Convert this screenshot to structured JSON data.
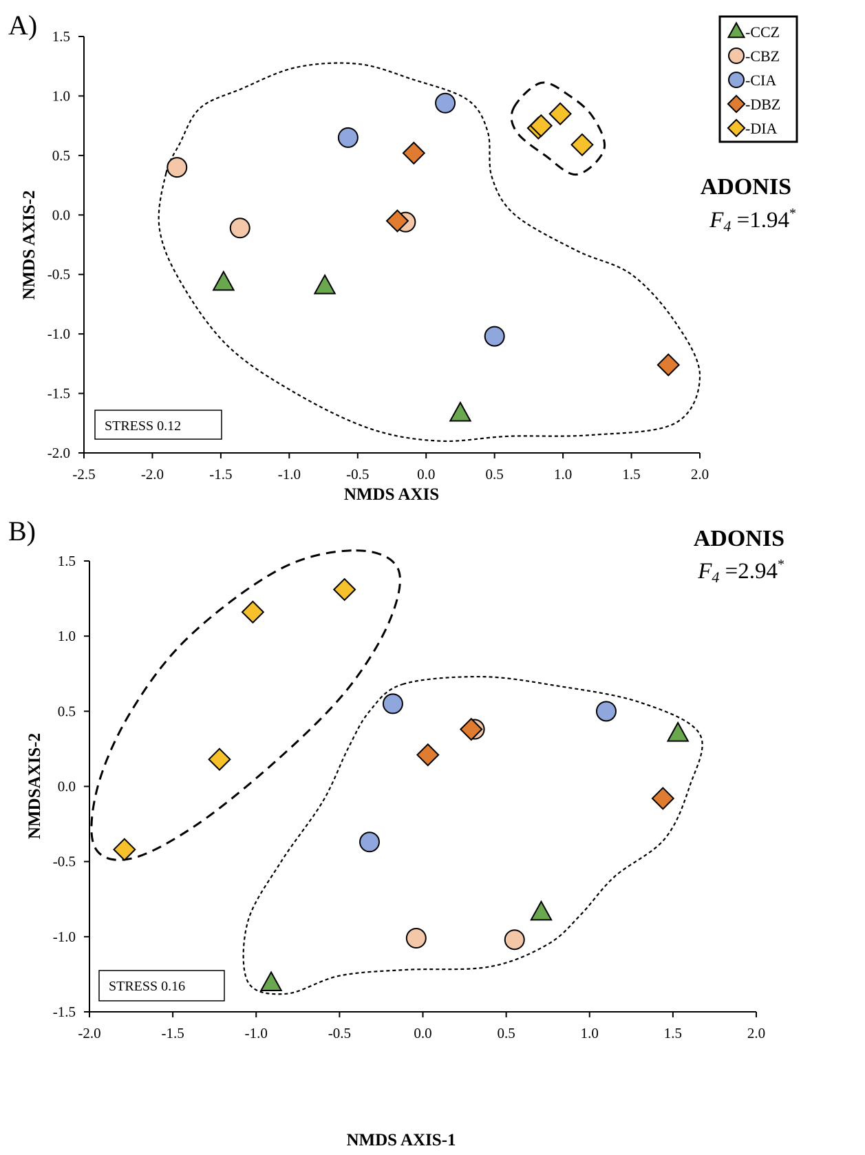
{
  "colors": {
    "CCZ": "#6aa84f",
    "CBZ": "#f4c7a8",
    "CIA": "#8fa7dc",
    "DBZ": "#e07b32",
    "DIA": "#f6c12b",
    "stroke": "#000000"
  },
  "legend": [
    {
      "key": "CCZ",
      "label": "-CCZ",
      "shape": "triangle"
    },
    {
      "key": "CBZ",
      "label": "-CBZ",
      "shape": "circle"
    },
    {
      "key": "CIA",
      "label": "-CIA",
      "shape": "circle"
    },
    {
      "key": "DBZ",
      "label": "-DBZ",
      "shape": "diamond"
    },
    {
      "key": "DIA",
      "label": "-DIA",
      "shape": "diamond"
    }
  ],
  "chart_data": [
    {
      "type": "scatter",
      "panel_label": "A)",
      "xlabel": "NMDS AXIS",
      "ylabel": "NMDS AXIS-2",
      "xlim": [
        -2.5,
        2.0
      ],
      "ylim": [
        -2.0,
        1.5
      ],
      "xticks": [
        "-2.5",
        "-2.0",
        "-1.5",
        "-1.0",
        "-0.5",
        "0.0",
        "0.5",
        "1.0",
        "1.5",
        "2.0"
      ],
      "yticks": [
        "1.5",
        "1.0",
        "0.5",
        "0.0",
        "-0.5",
        "-1.0",
        "-1.5",
        "-2.0"
      ],
      "stress": "STRESS 0.12",
      "adonis_title": "ADONIS",
      "adonis_f": "F",
      "adonis_df": "4",
      "adonis_value": " =1.94",
      "adonis_sig": "*",
      "points": [
        {
          "group": "CBZ",
          "x": -1.82,
          "y": 0.4
        },
        {
          "group": "CBZ",
          "x": -1.36,
          "y": -0.11
        },
        {
          "group": "CBZ",
          "x": -0.15,
          "y": -0.06
        },
        {
          "group": "CIA",
          "x": -0.57,
          "y": 0.65
        },
        {
          "group": "CIA",
          "x": 0.14,
          "y": 0.94
        },
        {
          "group": "CIA",
          "x": 0.5,
          "y": -1.02
        },
        {
          "group": "DBZ",
          "x": -0.09,
          "y": 0.52
        },
        {
          "group": "DBZ",
          "x": -0.21,
          "y": -0.05
        },
        {
          "group": "DBZ",
          "x": 1.77,
          "y": -1.26
        },
        {
          "group": "CCZ",
          "x": -1.48,
          "y": -0.57
        },
        {
          "group": "CCZ",
          "x": -0.74,
          "y": -0.6
        },
        {
          "group": "CCZ",
          "x": 0.25,
          "y": -1.67
        },
        {
          "group": "DIA",
          "x": 0.82,
          "y": 0.73
        },
        {
          "group": "DIA",
          "x": 0.84,
          "y": 0.75
        },
        {
          "group": "DIA",
          "x": 0.98,
          "y": 0.85
        },
        {
          "group": "DIA",
          "x": 1.14,
          "y": 0.59
        }
      ],
      "hulls": [
        {
          "style": "dotted",
          "points": [
            [
              -1.9,
              0.35
            ],
            [
              -1.8,
              0.6
            ],
            [
              -1.65,
              0.9
            ],
            [
              -1.35,
              1.06
            ],
            [
              -0.95,
              1.24
            ],
            [
              -0.5,
              1.27
            ],
            [
              -0.1,
              1.14
            ],
            [
              0.3,
              0.97
            ],
            [
              0.45,
              0.7
            ],
            [
              0.48,
              0.32
            ],
            [
              0.65,
              0.0
            ],
            [
              1.1,
              -0.3
            ],
            [
              1.5,
              -0.5
            ],
            [
              1.82,
              -0.9
            ],
            [
              2.0,
              -1.35
            ],
            [
              1.82,
              -1.75
            ],
            [
              1.2,
              -1.85
            ],
            [
              0.6,
              -1.86
            ],
            [
              0.1,
              -1.9
            ],
            [
              -0.4,
              -1.8
            ],
            [
              -0.95,
              -1.5
            ],
            [
              -1.45,
              -1.1
            ],
            [
              -1.8,
              -0.55
            ],
            [
              -1.95,
              -0.1
            ]
          ]
        },
        {
          "style": "dashed",
          "points": [
            [
              0.64,
              0.9
            ],
            [
              0.84,
              1.11
            ],
            [
              1.05,
              1.0
            ],
            [
              1.22,
              0.82
            ],
            [
              1.3,
              0.55
            ],
            [
              1.1,
              0.34
            ],
            [
              0.87,
              0.5
            ],
            [
              0.66,
              0.7
            ]
          ]
        }
      ]
    },
    {
      "type": "scatter",
      "panel_label": "B)",
      "xlabel": "NMDS AXIS-1",
      "ylabel": "NMDSAXIS-2",
      "xlim": [
        -2.0,
        2.0
      ],
      "ylim": [
        -1.5,
        1.5
      ],
      "xticks": [
        "-2.0",
        "-1.5",
        "-1.0",
        "-0.5",
        "0.0",
        "0.5",
        "1.0",
        "1.5",
        "2.0"
      ],
      "yticks": [
        "1.5",
        "1.0",
        "0.5",
        "0.0",
        "-0.5",
        "-1.0",
        "-1.5"
      ],
      "stress": "STRESS 0.16",
      "adonis_title": "ADONIS",
      "adonis_f": "F",
      "adonis_df": "4",
      "adonis_value": " =2.94",
      "adonis_sig": "*",
      "points": [
        {
          "group": "DIA",
          "x": -1.79,
          "y": -0.42
        },
        {
          "group": "DIA",
          "x": -1.22,
          "y": 0.18
        },
        {
          "group": "DIA",
          "x": -1.02,
          "y": 1.16
        },
        {
          "group": "DIA",
          "x": -0.47,
          "y": 1.31
        },
        {
          "group": "CIA",
          "x": -0.18,
          "y": 0.55
        },
        {
          "group": "CIA",
          "x": -0.32,
          "y": -0.37
        },
        {
          "group": "CIA",
          "x": 1.1,
          "y": 0.5
        },
        {
          "group": "CBZ",
          "x": 0.31,
          "y": 0.38
        },
        {
          "group": "CBZ",
          "x": -0.04,
          "y": -1.01
        },
        {
          "group": "CBZ",
          "x": 0.55,
          "y": -1.02
        },
        {
          "group": "DBZ",
          "x": 0.29,
          "y": 0.38
        },
        {
          "group": "DBZ",
          "x": 0.03,
          "y": 0.21
        },
        {
          "group": "DBZ",
          "x": 1.44,
          "y": -0.08
        },
        {
          "group": "CCZ",
          "x": 1.53,
          "y": 0.35
        },
        {
          "group": "CCZ",
          "x": 0.71,
          "y": -0.84
        },
        {
          "group": "CCZ",
          "x": -0.91,
          "y": -1.31
        }
      ],
      "hulls": [
        {
          "style": "dotted",
          "points": [
            [
              -0.12,
              0.68
            ],
            [
              0.35,
              0.73
            ],
            [
              0.8,
              0.67
            ],
            [
              1.3,
              0.56
            ],
            [
              1.66,
              0.35
            ],
            [
              1.6,
              0.0
            ],
            [
              1.45,
              -0.35
            ],
            [
              1.15,
              -0.6
            ],
            [
              0.95,
              -0.85
            ],
            [
              0.75,
              -1.05
            ],
            [
              0.4,
              -1.2
            ],
            [
              -0.1,
              -1.22
            ],
            [
              -0.5,
              -1.26
            ],
            [
              -0.82,
              -1.38
            ],
            [
              -1.05,
              -1.3
            ],
            [
              -1.05,
              -0.9
            ],
            [
              -0.85,
              -0.5
            ],
            [
              -0.6,
              -0.1
            ],
            [
              -0.45,
              0.25
            ],
            [
              -0.32,
              0.5
            ]
          ]
        },
        {
          "style": "dashed",
          "points": [
            [
              -0.4,
              1.57
            ],
            [
              -0.15,
              1.45
            ],
            [
              -0.2,
              1.1
            ],
            [
              -0.45,
              0.65
            ],
            [
              -0.85,
              0.2
            ],
            [
              -1.35,
              -0.25
            ],
            [
              -1.75,
              -0.48
            ],
            [
              -1.97,
              -0.4
            ],
            [
              -1.95,
              0.0
            ],
            [
              -1.75,
              0.5
            ],
            [
              -1.4,
              1.0
            ],
            [
              -0.85,
              1.45
            ]
          ]
        }
      ]
    }
  ]
}
